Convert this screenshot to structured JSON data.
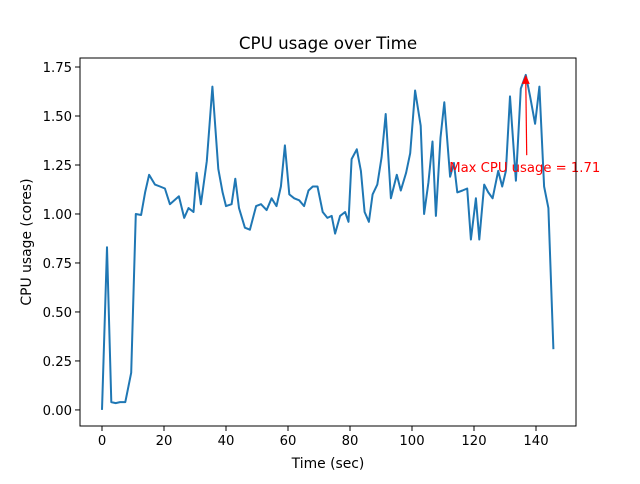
{
  "chart_data": {
    "type": "line",
    "title": "CPU usage over Time",
    "xlabel": "Time (sec)",
    "ylabel": "CPU usage (cores)",
    "xlim": [
      -7.1,
      152.9
    ],
    "ylim": [
      -0.082,
      1.796
    ],
    "grid": false,
    "xticks": [
      0,
      20,
      40,
      60,
      80,
      100,
      120,
      140
    ],
    "xtick_labels": [
      "0",
      "20",
      "40",
      "60",
      "80",
      "100",
      "120",
      "140"
    ],
    "yticks": [
      0,
      0.25,
      0.5,
      0.75,
      1.0,
      1.25,
      1.5,
      1.75
    ],
    "ytick_labels": [
      "0.00",
      "0.25",
      "0.50",
      "0.75",
      "1.00",
      "1.25",
      "1.50",
      "1.75"
    ],
    "series_color": "#1f77b4",
    "x": [
      0,
      1.6,
      3.0,
      4.4,
      5.8,
      7.5,
      9.4,
      10.9,
      12.6,
      13.9,
      15.2,
      17.1,
      18.7,
      20.3,
      21.9,
      24.8,
      26.5,
      27.9,
      29.5,
      30.5,
      31.9,
      33.8,
      35.6,
      37.5,
      38.9,
      40,
      41.8,
      43,
      44.2,
      46.1,
      47.7,
      49.7,
      51.3,
      53.1,
      54.7,
      56.3,
      57.7,
      59.0,
      60.4,
      62,
      63.6,
      65.2,
      66.6,
      68,
      69.5,
      71.2,
      72.7,
      74.1,
      75.2,
      76.8,
      78.4,
      79.5,
      80.5,
      82.2,
      83.5,
      84.7,
      86.1,
      87.3,
      88.8,
      90.2,
      91.5,
      93.2,
      95.1,
      96.4,
      98.1,
      99.4,
      101,
      102.8,
      103.9,
      105.3,
      106.6,
      107.7,
      109.2,
      110.4,
      112.3,
      113.5,
      114.6,
      116.3,
      117.8,
      119,
      120.6,
      121.7,
      123.3,
      124.6,
      126,
      127.8,
      129.1,
      130.3,
      131.6,
      133.5,
      135.1,
      136.7,
      138.1,
      139.7,
      141.1,
      142.6,
      144,
      145.6
    ],
    "y": [
      0.0,
      0.83,
      0.04,
      0.035,
      0.04,
      0.04,
      0.19,
      1.0,
      0.995,
      1.11,
      1.2,
      1.15,
      1.14,
      1.13,
      1.05,
      1.09,
      0.98,
      1.03,
      1.01,
      1.21,
      1.05,
      1.27,
      1.65,
      1.23,
      1.11,
      1.04,
      1.05,
      1.18,
      1.03,
      0.93,
      0.92,
      1.04,
      1.05,
      1.02,
      1.08,
      1.04,
      1.14,
      1.35,
      1.1,
      1.08,
      1.07,
      1.04,
      1.12,
      1.14,
      1.14,
      1.01,
      0.98,
      0.99,
      0.9,
      0.99,
      1.01,
      0.96,
      1.28,
      1.33,
      1.22,
      1.01,
      0.96,
      1.1,
      1.15,
      1.29,
      1.51,
      1.08,
      1.2,
      1.12,
      1.21,
      1.31,
      1.63,
      1.45,
      1.0,
      1.16,
      1.37,
      0.99,
      1.39,
      1.57,
      1.19,
      1.26,
      1.11,
      1.12,
      1.13,
      0.87,
      1.08,
      0.87,
      1.15,
      1.11,
      1.08,
      1.22,
      1.14,
      1.22,
      1.6,
      1.17,
      1.64,
      1.71,
      1.6,
      1.46,
      1.65,
      1.14,
      1.03,
      0.31
    ],
    "annotation": {
      "text": "Max CPU usage = 1.71",
      "point": [
        136.7,
        1.71
      ],
      "text_position": [
        112,
        1.24
      ],
      "arrow_tail": [
        137,
        1.3
      ],
      "color": "#ff0000"
    }
  }
}
